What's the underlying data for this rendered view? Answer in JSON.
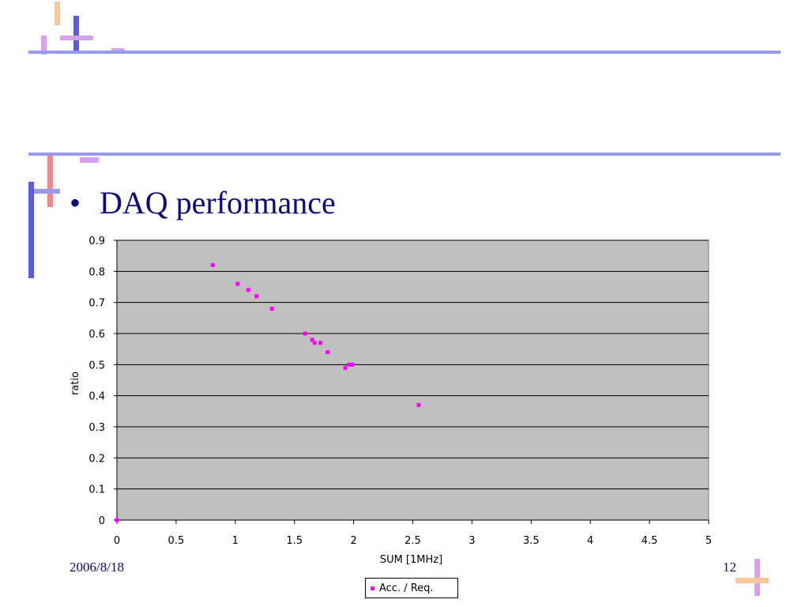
{
  "slide": {
    "bullet": "•",
    "title": "DAQ performance",
    "date": "2006/8/18",
    "page_number": "12"
  },
  "theme": {
    "rule_color": "#9999ee",
    "accent_blue": "#5a5ae6",
    "accent_lilac": "#d9a0f0",
    "accent_peach": "#f7c99a",
    "accent_pink": "#f08a8a",
    "title_color": "#0a0a78"
  },
  "chart_data": {
    "type": "scatter",
    "xlabel": "SUM [1MHz]",
    "ylabel": "ratio",
    "xlim": [
      0,
      5
    ],
    "ylim": [
      0,
      0.9
    ],
    "x_ticks": [
      "0",
      "0.5",
      "1",
      "1.5",
      "2",
      "2.5",
      "3",
      "3.5",
      "4",
      "4.5",
      "5"
    ],
    "y_ticks": [
      "0",
      "0.1",
      "0.2",
      "0.3",
      "0.4",
      "0.5",
      "0.6",
      "0.7",
      "0.8",
      "0.9"
    ],
    "grid": "horizontal",
    "plot_background": "#c0c0c0",
    "legend_position": "bottom",
    "series": [
      {
        "name": "Acc. / Req.",
        "color": "#ff00ff",
        "marker": "square",
        "x": [
          0,
          0.81,
          1.02,
          1.11,
          1.18,
          1.31,
          1.59,
          1.65,
          1.67,
          1.72,
          1.78,
          1.93,
          1.96,
          1.99,
          2.55
        ],
        "y": [
          0,
          0.82,
          0.76,
          0.74,
          0.72,
          0.68,
          0.6,
          0.58,
          0.57,
          0.57,
          0.54,
          0.49,
          0.5,
          0.5,
          0.37
        ]
      }
    ]
  }
}
